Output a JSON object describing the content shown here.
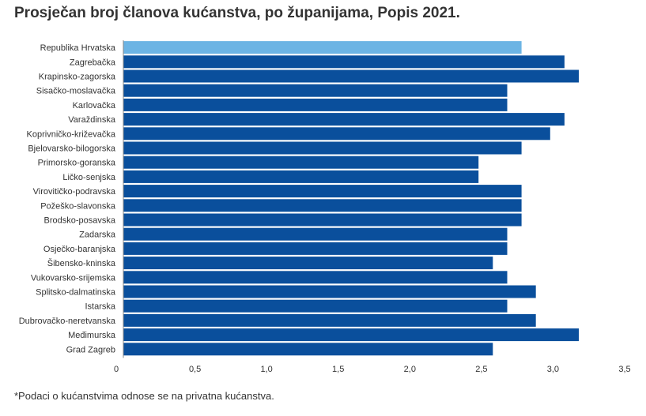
{
  "title": "Prosječan broj članova kućanstva, po županijama, Popis 2021.",
  "footnote": "*Podaci o kućanstvima odnose se na privatna kućanstva.",
  "chart_data": {
    "type": "bar",
    "orientation": "horizontal",
    "title": "Prosječan broj članova kućanstva, po županijama, Popis 2021.",
    "xlabel": "",
    "ylabel": "",
    "xlim": [
      0,
      3.5
    ],
    "ticks": [
      0,
      0.5,
      1.0,
      1.5,
      2.0,
      2.5,
      3.0,
      3.5
    ],
    "tick_labels": [
      "0",
      "0,5",
      "1,0",
      "1,5",
      "2,0",
      "2,5",
      "3,0",
      "3,5"
    ],
    "categories": [
      "Republika Hrvatska",
      "Zagrebačka",
      "Krapinsko-zagorska",
      "Sisačko-moslavačka",
      "Karlovačka",
      "Varaždinska",
      "Koprivničko-križevačka",
      "Bjelovarsko-bilogorska",
      "Primorsko-goranska",
      "Ličko-senjska",
      "Virovitičko-podravska",
      "Požeško-slavonska",
      "Brodsko-posavska",
      "Zadarska",
      "Osječko-baranjska",
      "Šibensko-kninska",
      "Vukovarsko-srijemska",
      "Splitsko-dalmatinska",
      "Istarska",
      "Dubrovačko-neretvanska",
      "Međimurska",
      "Grad Zagreb"
    ],
    "values": [
      2.78,
      3.08,
      3.18,
      2.68,
      2.68,
      3.08,
      2.98,
      2.78,
      2.48,
      2.48,
      2.78,
      2.78,
      2.78,
      2.68,
      2.68,
      2.58,
      2.68,
      2.88,
      2.68,
      2.88,
      3.18,
      2.58
    ],
    "colors": {
      "highlight": "#6cb4e4",
      "default": "#0a4f9c",
      "axis": "#888888"
    },
    "highlight_index": 0
  }
}
